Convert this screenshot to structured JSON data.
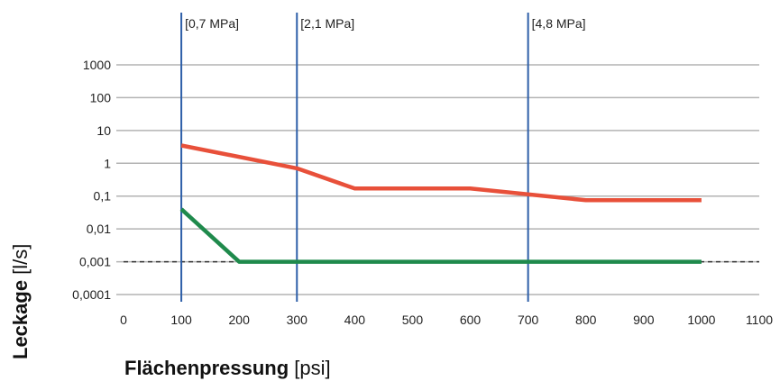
{
  "chart_data": {
    "type": "line",
    "xlabel": {
      "bold": "Flächenpressung",
      "unit": " [psi]"
    },
    "ylabel": {
      "bold": "Leckage",
      "unit": " [l/s]"
    },
    "x_ticks": [
      "0",
      "100",
      "200",
      "300",
      "400",
      "500",
      "600",
      "700",
      "800",
      "900",
      "1000",
      "1100"
    ],
    "y_ticks": [
      "0,0001",
      "0,001",
      "0,01",
      "0,1",
      "1",
      "10",
      "100",
      "1000"
    ],
    "xlim": [
      0,
      1100
    ],
    "ylim": [
      0.0001,
      1000
    ],
    "y_scale": "log",
    "grid": true,
    "reference_line": {
      "y": 0.001,
      "style": "dashed",
      "color": "#333333"
    },
    "vertical_markers": [
      {
        "x": 100,
        "label": "[0,7 MPa]"
      },
      {
        "x": 300,
        "label": "[2,1 MPa]"
      },
      {
        "x": 700,
        "label": "[4,8 MPa]"
      }
    ],
    "series": [
      {
        "color": "#e8503a",
        "x": [
          100,
          300,
          400,
          600,
          800,
          1000
        ],
        "y": [
          3.5,
          0.7,
          0.17,
          0.17,
          0.075,
          0.075
        ]
      },
      {
        "color": "#1f8a4c",
        "x": [
          100,
          200,
          1000
        ],
        "y": [
          0.04,
          0.001,
          0.001
        ]
      }
    ],
    "marker_color": "#2e5fa8",
    "grid_color": "#b3b3b3"
  }
}
